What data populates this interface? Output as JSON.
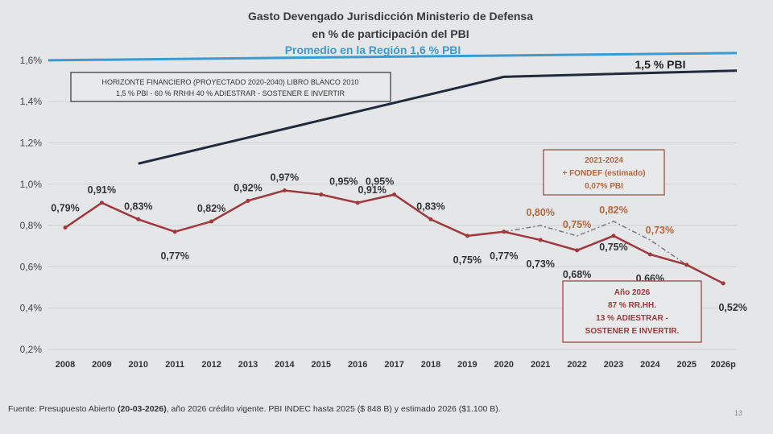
{
  "chart_data": {
    "type": "line",
    "title": "Gasto Devengado Jurisdicción Ministerio de Defensa",
    "subtitle": "en % de participación del PBI",
    "categories": [
      "2008",
      "2009",
      "2010",
      "2011",
      "2012",
      "2013",
      "2014",
      "2015",
      "2016",
      "2017",
      "2018",
      "2019",
      "2020",
      "2021",
      "2022",
      "2023",
      "2024",
      "2025",
      "2026p"
    ],
    "ylim": [
      0.2,
      1.6
    ],
    "yticks": [
      "0,2%",
      "0,4%",
      "0,6%",
      "0,8%",
      "1,0%",
      "1,2%",
      "1,4%",
      "1,6%"
    ],
    "grid": true,
    "series": [
      {
        "values": [
          0.79,
          0.91,
          0.83,
          0.77,
          0.82,
          0.92,
          0.97,
          0.95,
          0.91,
          0.95,
          0.83,
          0.75,
          0.77,
          0.73,
          0.68,
          0.75,
          0.66,
          0.61,
          0.52
        ],
        "labels": [
          "0,79%",
          "0,91%",
          "0,83%",
          "0,77%",
          "0,82%",
          "0,92%",
          "0,97%",
          "0,95%",
          "0,91%",
          "0,95%",
          "0,83%",
          "0,75%",
          "0,77%",
          "0,73%",
          "0,68%",
          "0,75%",
          "0,66%",
          "0,61%",
          "0,52%"
        ],
        "color": "#a0393c"
      },
      {
        "style": "dash-dot",
        "x": [
          "2020",
          "2021",
          "2022",
          "2023",
          "2024",
          "2025"
        ],
        "values": [
          0.77,
          0.8,
          0.75,
          0.82,
          0.73,
          0.61
        ],
        "labels": [
          "",
          "0,80%",
          "0,75%",
          "0,82%",
          "0,73%",
          ""
        ],
        "color": "#7a7a7a",
        "label_color": "#b5673f"
      },
      {
        "name": "1,5 % PBI",
        "x": [
          "2010",
          "2020",
          "2026p"
        ],
        "values": [
          1.1,
          1.52,
          1.55
        ],
        "color": "#1f2a3c"
      },
      {
        "name": "Promedio en la Región 1,6 % PBI",
        "x": [
          "2008",
          "2026p"
        ],
        "values": [
          1.6,
          1.6
        ],
        "color": "#3a9bd0"
      }
    ],
    "annotations": {
      "horizon_box": [
        "HORIZONTE FINANCIERO (PROYECTADO 2020-2040) LIBRO BLANCO 2010",
        "1,5 % PBI - 60 % RRHH 40 % ADIESTRAR - SOSTENER E INVERTIR"
      ],
      "fondef_box": [
        "2021-2024",
        "+ FONDEF (estimado)",
        "0,07% PBI"
      ],
      "year2026_box": [
        "Año 2026",
        "87 % RR.HH.",
        "13 % ADIESTRAR -",
        "SOSTENER E INVERTIR."
      ]
    }
  },
  "footer": {
    "source_prefix": "Fuente: Presupuesto Abierto ",
    "source_date": "(20-03-2026)",
    "source_suffix": ", año 2026 crédito vigente. PBI INDEC hasta 2025 ($ 848 B)  y estimado 2026 ($1.100 B).",
    "page_number": "13"
  }
}
